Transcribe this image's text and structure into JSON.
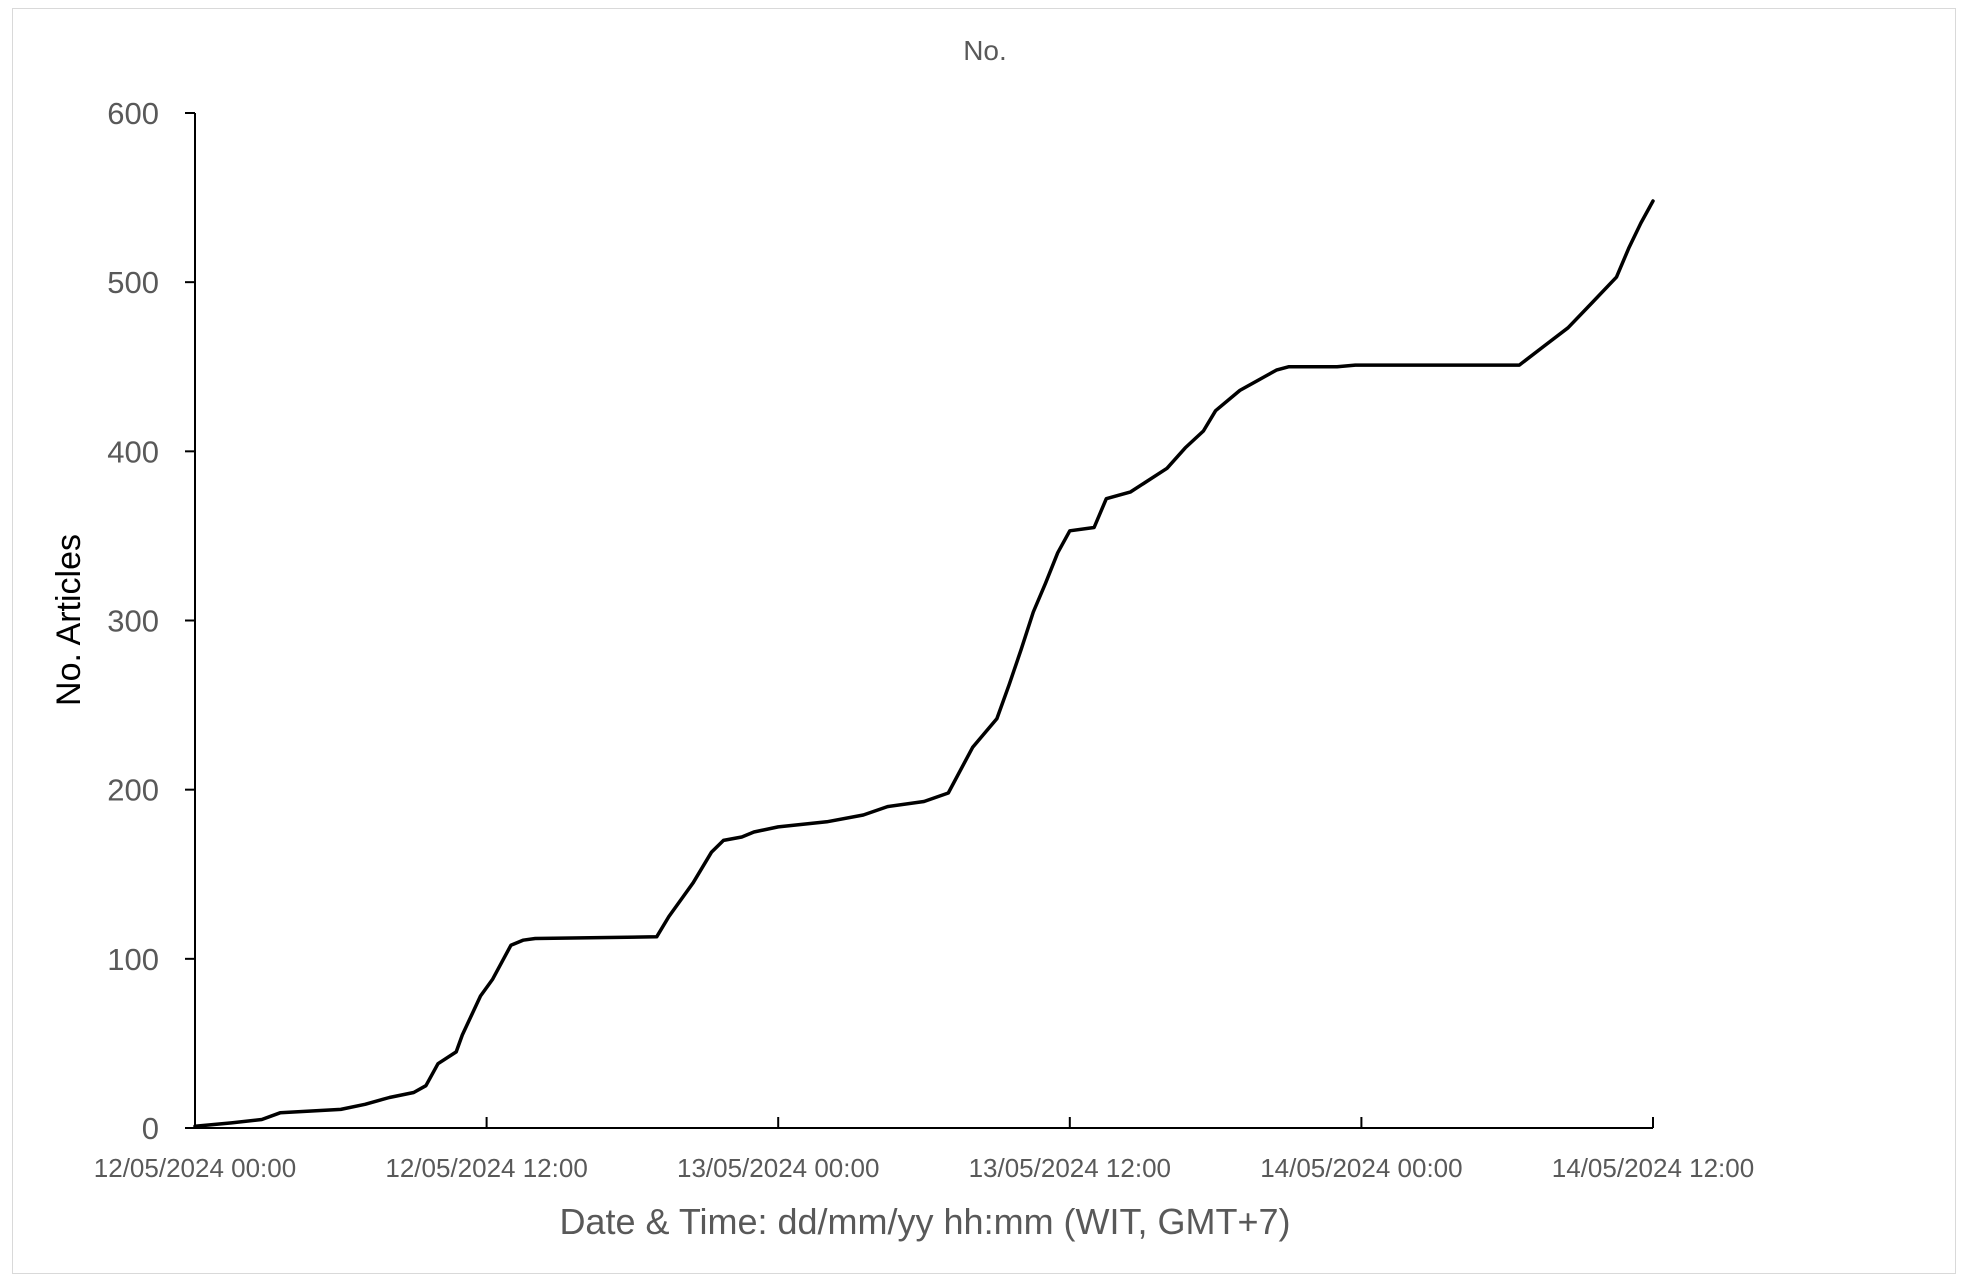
{
  "chart_data": {
    "type": "line",
    "title": "No.",
    "xlabel": "Date & Time: dd/mm/yy hh:mm (WIT, GMT+7)",
    "ylabel": "No. Articles",
    "ylim": [
      0,
      600
    ],
    "xlim": [
      "12/05/2024 00:00",
      "14/05/2024 12:00"
    ],
    "y_ticks": [
      0,
      100,
      200,
      300,
      400,
      500,
      600
    ],
    "x_ticks": [
      "12/05/2024 00:00",
      "12/05/2024 12:00",
      "13/05/2024 00:00",
      "13/05/2024 12:00",
      "14/05/2024 00:00",
      "14/05/2024 12:00"
    ],
    "grid": false,
    "legend": "none",
    "line_color": "#000000",
    "series": [
      {
        "x": [
          "12/05/2024 00:00",
          "12/05/2024 01:30",
          "12/05/2024 02:45",
          "12/05/2024 03:30",
          "12/05/2024 06:00",
          "12/05/2024 07:00",
          "12/05/2024 08:00",
          "12/05/2024 09:00",
          "12/05/2024 09:30",
          "12/05/2024 10:00",
          "12/05/2024 10:45",
          "12/05/2024 11:00",
          "12/05/2024 11:45",
          "12/05/2024 12:15",
          "12/05/2024 13:00",
          "12/05/2024 13:30",
          "12/05/2024 14:00",
          "12/05/2024 19:00",
          "12/05/2024 19:30",
          "12/05/2024 20:30",
          "12/05/2024 21:15",
          "12/05/2024 21:45",
          "12/05/2024 22:30",
          "12/05/2024 23:00",
          "13/05/2024 00:00",
          "13/05/2024 02:00",
          "13/05/2024 03:30",
          "13/05/2024 04:30",
          "13/05/2024 06:00",
          "13/05/2024 07:00",
          "13/05/2024 08:00",
          "13/05/2024 09:00",
          "13/05/2024 09:30",
          "13/05/2024 10:00",
          "13/05/2024 10:30",
          "13/05/2024 11:00",
          "13/05/2024 11:30",
          "13/05/2024 12:00",
          "13/05/2024 13:00",
          "13/05/2024 13:30",
          "13/05/2024 14:00",
          "13/05/2024 14:30",
          "13/05/2024 16:00",
          "13/05/2024 16:45",
          "13/05/2024 17:30",
          "13/05/2024 18:00",
          "13/05/2024 19:00",
          "13/05/2024 20:00",
          "13/05/2024 20:30",
          "13/05/2024 21:00",
          "13/05/2024 22:00",
          "13/05/2024 23:00",
          "13/05/2024 23:45",
          "14/05/2024 06:30",
          "14/05/2024 07:30",
          "14/05/2024 08:30",
          "14/05/2024 09:30",
          "14/05/2024 10:30",
          "14/05/2024 11:00",
          "14/05/2024 11:30",
          "14/05/2024 12:00"
        ],
        "values": [
          1,
          3,
          5,
          9,
          11,
          14,
          18,
          21,
          25,
          38,
          45,
          55,
          78,
          88,
          108,
          111,
          112,
          113,
          125,
          145,
          163,
          170,
          172,
          175,
          178,
          181,
          185,
          190,
          193,
          198,
          225,
          242,
          262,
          283,
          305,
          322,
          340,
          353,
          355,
          372,
          374,
          376,
          390,
          402,
          412,
          424,
          436,
          444,
          448,
          450,
          450,
          450,
          451,
          451,
          462,
          473,
          488,
          503,
          520,
          535,
          548
        ]
      }
    ]
  }
}
